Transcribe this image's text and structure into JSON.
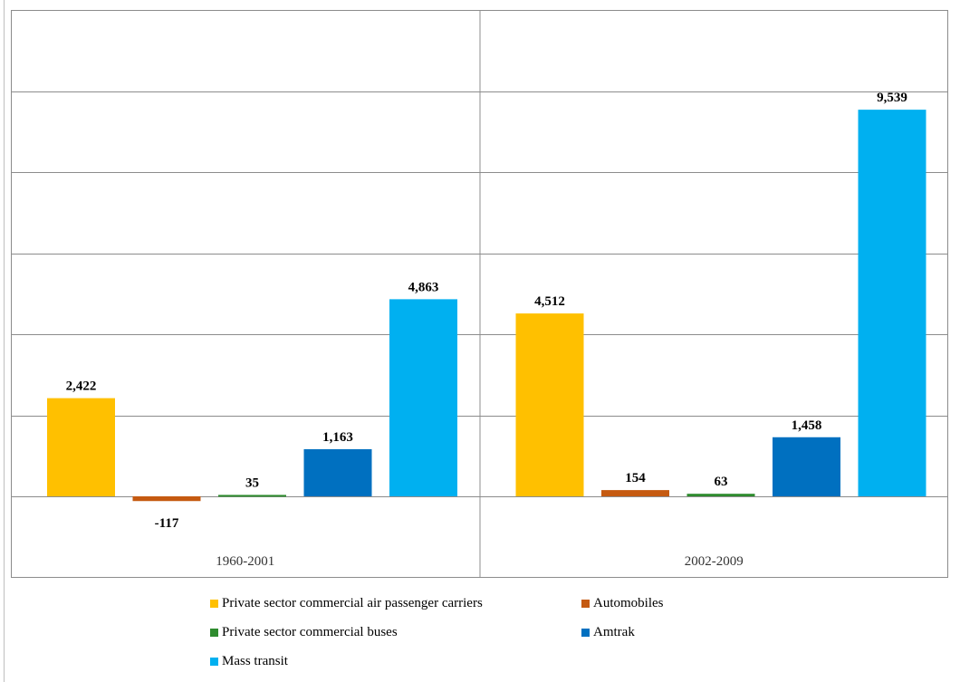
{
  "chart_data": {
    "type": "bar",
    "categories": [
      "1960-2001",
      "2002-2009"
    ],
    "series": [
      {
        "name": "Private sector commercial air passenger carriers",
        "color": "#FFC000",
        "values": [
          2422,
          4512
        ],
        "labels": [
          "2,422",
          "4,512"
        ]
      },
      {
        "name": "Automobiles",
        "color": "#C55A11",
        "values": [
          -117,
          154
        ],
        "labels": [
          "-117",
          "154"
        ]
      },
      {
        "name": "Private sector commercial buses",
        "color": "#2E8B2E",
        "values": [
          35,
          63
        ],
        "labels": [
          "35",
          "63"
        ]
      },
      {
        "name": "Amtrak",
        "color": "#0070C0",
        "values": [
          1163,
          1458
        ],
        "labels": [
          "1,163",
          "1,458"
        ]
      },
      {
        "name": "Mass transit",
        "color": "#00B0F0",
        "values": [
          4863,
          9539
        ],
        "labels": [
          "4,863",
          "9,539"
        ]
      }
    ],
    "ylim": [
      -1000,
      12000
    ],
    "gridlines": [
      0,
      2000,
      4000,
      6000,
      8000,
      10000
    ],
    "grid": true,
    "legend_position": "bottom",
    "title": "",
    "xlabel": "",
    "ylabel": ""
  }
}
